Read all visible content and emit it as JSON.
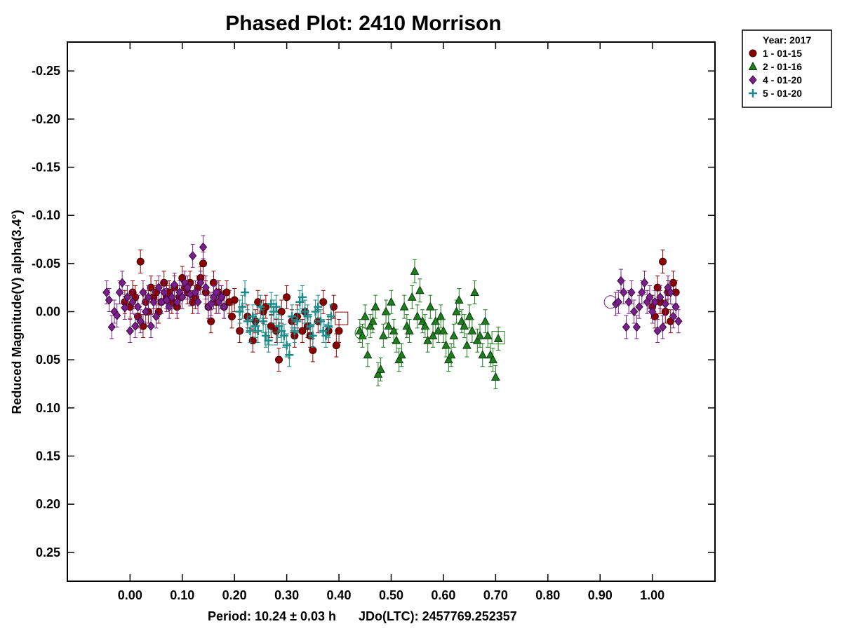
{
  "chart_data": {
    "type": "scatter",
    "title": "Phased Plot: 2410 Morrison",
    "xlabel": "Period: 10.24 ± 0.03 h",
    "xlabel_extra": "JDo(LTC): 2457769.252357",
    "ylabel": "Reduced Magnitude(V) alpha(3.4°)",
    "xlim": [
      -0.12,
      1.12
    ],
    "ylim": [
      0.28,
      -0.28
    ],
    "y_inverted": true,
    "grid": false,
    "x_ticks": [
      0.0,
      0.1,
      0.2,
      0.3,
      0.4,
      0.5,
      0.6,
      0.7,
      0.8,
      0.9,
      1.0
    ],
    "x_tick_labels": [
      "0.00",
      "0.10",
      "0.20",
      "0.30",
      "0.40",
      "0.50",
      "0.60",
      "0.70",
      "0.80",
      "0.90",
      "1.00"
    ],
    "y_ticks": [
      -0.25,
      -0.2,
      -0.15,
      -0.1,
      -0.05,
      0.0,
      0.05,
      0.1,
      0.15,
      0.2,
      0.25
    ],
    "y_tick_labels": [
      "-0.25",
      "-0.20",
      "-0.15",
      "-0.10",
      "-0.05",
      "0.00",
      "0.05",
      "0.10",
      "0.15",
      "0.20",
      "0.25"
    ],
    "legend": {
      "placement": "top-right-outside",
      "header": "Year: 2017",
      "entries": [
        "1 - 01-15",
        "2 - 01-16",
        "4 - 01-20",
        "5 - 01-20"
      ]
    },
    "error_bar": 0.012,
    "series": [
      {
        "name": "1 - 01-15",
        "marker": "circle",
        "color": "#8b0000",
        "stroke": "#3a0000",
        "points": [
          [
            -0.01,
            -0.01
          ],
          [
            0.0,
            -0.005
          ],
          [
            0.005,
            -0.02
          ],
          [
            0.01,
            -0.015
          ],
          [
            0.015,
            0.005
          ],
          [
            0.02,
            -0.052
          ],
          [
            0.025,
            0.015
          ],
          [
            0.03,
            -0.01
          ],
          [
            0.035,
            0.0
          ],
          [
            0.04,
            -0.025
          ],
          [
            0.045,
            -0.015
          ],
          [
            0.05,
            -0.02
          ],
          [
            0.055,
            0.0
          ],
          [
            0.06,
            -0.01
          ],
          [
            0.065,
            -0.03
          ],
          [
            0.07,
            -0.015
          ],
          [
            0.075,
            -0.02
          ],
          [
            0.08,
            -0.01
          ],
          [
            0.085,
            -0.025
          ],
          [
            0.09,
            -0.005
          ],
          [
            0.095,
            -0.015
          ],
          [
            0.1,
            -0.035
          ],
          [
            0.105,
            -0.025
          ],
          [
            0.11,
            -0.02
          ],
          [
            0.115,
            -0.03
          ],
          [
            0.12,
            -0.01
          ],
          [
            0.125,
            -0.015
          ],
          [
            0.13,
            -0.025
          ],
          [
            0.135,
            -0.035
          ],
          [
            0.14,
            -0.05
          ],
          [
            0.145,
            -0.02
          ],
          [
            0.15,
            -0.005
          ],
          [
            0.155,
            0.01
          ],
          [
            0.16,
            -0.03
          ],
          [
            0.165,
            -0.01
          ],
          [
            0.17,
            -0.02
          ],
          [
            0.175,
            -0.015
          ],
          [
            0.18,
            -0.005
          ],
          [
            0.185,
            -0.02
          ],
          [
            0.19,
            -0.01
          ],
          [
            0.195,
            0.005
          ],
          [
            0.2,
            -0.012
          ],
          [
            0.21,
            0.02
          ],
          [
            0.225,
            0.005
          ],
          [
            0.235,
            0.03
          ],
          [
            0.24,
            0.01
          ],
          [
            0.245,
            -0.01
          ],
          [
            0.255,
            0.0
          ],
          [
            0.26,
            -0.005
          ],
          [
            0.27,
            0.015
          ],
          [
            0.28,
            0.02
          ],
          [
            0.285,
            0.05
          ],
          [
            0.29,
            0.0
          ],
          [
            0.3,
            -0.015
          ],
          [
            0.31,
            0.01
          ],
          [
            0.315,
            0.025
          ],
          [
            0.32,
            0.005
          ],
          [
            0.33,
            0.02
          ],
          [
            0.335,
            0.0
          ],
          [
            0.34,
            0.015
          ],
          [
            0.345,
            0.025
          ],
          [
            0.35,
            0.04
          ],
          [
            0.36,
            0.01
          ],
          [
            0.37,
            -0.01
          ],
          [
            0.38,
            0.02
          ],
          [
            0.39,
            -0.005
          ],
          [
            0.395,
            0.035
          ],
          [
            0.4,
            0.02
          ],
          [
            1.0,
            -0.005
          ],
          [
            1.005,
            0.005
          ],
          [
            1.01,
            -0.025
          ],
          [
            1.015,
            -0.01
          ],
          [
            1.02,
            -0.052
          ],
          [
            1.025,
            0.0
          ],
          [
            1.03,
            -0.02
          ],
          [
            1.035,
            0.01
          ],
          [
            1.04,
            -0.03
          ],
          [
            1.045,
            -0.02
          ]
        ]
      },
      {
        "name": "2 - 01-16",
        "marker": "triangle",
        "color": "#1e7d1e",
        "stroke": "#0a3a0a",
        "points": [
          [
            0.44,
            0.02
          ],
          [
            0.445,
            0.025
          ],
          [
            0.45,
            0.005
          ],
          [
            0.455,
            0.045
          ],
          [
            0.46,
            0.015
          ],
          [
            0.465,
            0.01
          ],
          [
            0.47,
            -0.005
          ],
          [
            0.475,
            0.065
          ],
          [
            0.48,
            0.06
          ],
          [
            0.485,
            0.025
          ],
          [
            0.49,
            0.0
          ],
          [
            0.495,
            0.015
          ],
          [
            0.5,
            -0.01
          ],
          [
            0.505,
            0.02
          ],
          [
            0.51,
            0.03
          ],
          [
            0.515,
            0.05
          ],
          [
            0.52,
            0.045
          ],
          [
            0.525,
            -0.005
          ],
          [
            0.53,
            0.015
          ],
          [
            0.535,
            0.02
          ],
          [
            0.54,
            -0.015
          ],
          [
            0.545,
            -0.042
          ],
          [
            0.55,
            0.005
          ],
          [
            0.555,
            -0.022
          ],
          [
            0.56,
            0.01
          ],
          [
            0.565,
            0.015
          ],
          [
            0.57,
            0.03
          ],
          [
            0.575,
            -0.005
          ],
          [
            0.58,
            0.025
          ],
          [
            0.585,
            0.01
          ],
          [
            0.59,
            0.02
          ],
          [
            0.595,
            0.005
          ],
          [
            0.6,
            0.02
          ],
          [
            0.605,
            0.035
          ],
          [
            0.61,
            0.05
          ],
          [
            0.615,
            0.045
          ],
          [
            0.62,
            0.025
          ],
          [
            0.625,
            0.0
          ],
          [
            0.63,
            -0.012
          ],
          [
            0.635,
            0.01
          ],
          [
            0.64,
            0.015
          ],
          [
            0.645,
            0.035
          ],
          [
            0.65,
            0.005
          ],
          [
            0.655,
            0.02
          ],
          [
            0.66,
            -0.02
          ],
          [
            0.665,
            0.03
          ],
          [
            0.67,
            0.025
          ],
          [
            0.675,
            0.045
          ],
          [
            0.68,
            0.01
          ],
          [
            0.685,
            0.025
          ],
          [
            0.69,
            0.045
          ],
          [
            0.695,
            0.05
          ],
          [
            0.7,
            0.068
          ],
          [
            0.705,
            0.028
          ]
        ]
      },
      {
        "name": "4 - 01-20",
        "marker": "diamond",
        "color": "#7a1f8a",
        "stroke": "#3a0a44",
        "points": [
          [
            -0.045,
            -0.02
          ],
          [
            -0.04,
            -0.012
          ],
          [
            -0.035,
            0.016
          ],
          [
            -0.03,
            0.0
          ],
          [
            -0.025,
            0.004
          ],
          [
            -0.02,
            -0.02
          ],
          [
            -0.015,
            -0.03
          ],
          [
            -0.01,
            -0.004
          ],
          [
            -0.005,
            -0.015
          ],
          [
            0.0,
            0.02
          ],
          [
            0.005,
            -0.01
          ],
          [
            0.01,
            0.015
          ],
          [
            0.015,
            -0.005
          ],
          [
            0.02,
            0.01
          ],
          [
            0.025,
            -0.02
          ],
          [
            0.03,
            0.0
          ],
          [
            0.035,
            -0.015
          ],
          [
            0.04,
            0.015
          ],
          [
            0.045,
            -0.01
          ],
          [
            0.05,
            0.005
          ],
          [
            0.055,
            -0.025
          ],
          [
            0.06,
            -0.01
          ],
          [
            0.065,
            -0.02
          ],
          [
            0.07,
            -0.012
          ],
          [
            0.075,
            -0.005
          ],
          [
            0.08,
            -0.015
          ],
          [
            0.085,
            -0.028
          ],
          [
            0.09,
            -0.01
          ],
          [
            0.095,
            -0.02
          ],
          [
            0.1,
            -0.015
          ],
          [
            0.105,
            -0.03
          ],
          [
            0.11,
            -0.025
          ],
          [
            0.115,
            -0.018
          ],
          [
            0.12,
            -0.058
          ],
          [
            0.125,
            -0.02
          ],
          [
            0.13,
            -0.01
          ],
          [
            0.135,
            -0.03
          ],
          [
            0.14,
            -0.067
          ],
          [
            0.145,
            -0.025
          ],
          [
            0.15,
            -0.005
          ],
          [
            0.155,
            -0.008
          ],
          [
            0.16,
            -0.015
          ],
          [
            0.165,
            -0.02
          ],
          [
            0.17,
            -0.01
          ],
          [
            0.175,
            -0.015
          ],
          [
            0.18,
            -0.005
          ],
          [
            0.93,
            -0.008
          ],
          [
            0.935,
            -0.01
          ],
          [
            0.94,
            -0.032
          ],
          [
            0.945,
            -0.02
          ],
          [
            0.95,
            0.016
          ],
          [
            0.955,
            -0.01
          ],
          [
            0.96,
            -0.02
          ],
          [
            0.965,
            0.0
          ],
          [
            0.97,
            0.016
          ],
          [
            0.975,
            -0.005
          ],
          [
            0.98,
            -0.02
          ],
          [
            0.985,
            -0.03
          ],
          [
            0.99,
            -0.01
          ],
          [
            0.995,
            -0.015
          ],
          [
            1.0,
            0.0
          ],
          [
            1.005,
            -0.01
          ],
          [
            1.01,
            0.02
          ],
          [
            1.015,
            -0.015
          ],
          [
            1.02,
            0.016
          ],
          [
            1.025,
            -0.008
          ],
          [
            1.03,
            -0.025
          ],
          [
            1.035,
            -0.02
          ],
          [
            1.04,
            0.005
          ],
          [
            1.045,
            -0.005
          ],
          [
            1.05,
            0.01
          ]
        ]
      },
      {
        "name": "5 - 01-20",
        "marker": "plus",
        "color": "#1a8a8a",
        "stroke": "#1a8a8a",
        "points": [
          [
            0.21,
            0.0
          ],
          [
            0.215,
            -0.005
          ],
          [
            0.22,
            -0.02
          ],
          [
            0.225,
            0.01
          ],
          [
            0.23,
            0.02
          ],
          [
            0.235,
            0.005
          ],
          [
            0.24,
            0.015
          ],
          [
            0.245,
            0.02
          ],
          [
            0.25,
            -0.005
          ],
          [
            0.255,
            0.01
          ],
          [
            0.26,
            0.025
          ],
          [
            0.265,
            0.03
          ],
          [
            0.27,
            -0.008
          ],
          [
            0.275,
            0.0
          ],
          [
            0.28,
            -0.005
          ],
          [
            0.285,
            0.015
          ],
          [
            0.29,
            0.02
          ],
          [
            0.295,
            0.025
          ],
          [
            0.3,
            0.035
          ],
          [
            0.305,
            0.045
          ],
          [
            0.31,
            0.005
          ],
          [
            0.315,
            0.02
          ],
          [
            0.32,
            0.01
          ],
          [
            0.325,
            -0.01
          ],
          [
            0.33,
            -0.015
          ],
          [
            0.335,
            0.0
          ],
          [
            0.34,
            0.005
          ],
          [
            0.345,
            0.015
          ],
          [
            0.35,
            0.025
          ],
          [
            0.355,
            0.0
          ],
          [
            0.36,
            -0.005
          ],
          [
            0.365,
            0.01
          ],
          [
            0.37,
            0.02
          ],
          [
            0.375,
            0.025
          ],
          [
            0.38,
            0.015
          ],
          [
            0.385,
            0.005
          ]
        ]
      }
    ],
    "reference_markers": [
      {
        "shape": "square",
        "series": "1 - 01-15",
        "x": 0.405,
        "y": 0.007
      },
      {
        "shape": "circle",
        "series": "2 - 01-16",
        "x": 0.443,
        "y": 0.022
      },
      {
        "shape": "square",
        "series": "2 - 01-16",
        "x": 0.705,
        "y": 0.027
      },
      {
        "shape": "circle",
        "series": "4 - 01-20",
        "x": 0.92,
        "y": -0.01
      },
      {
        "shape": "square",
        "series": "5 - 01-20",
        "x": 0.27,
        "y": 0.028
      }
    ]
  }
}
